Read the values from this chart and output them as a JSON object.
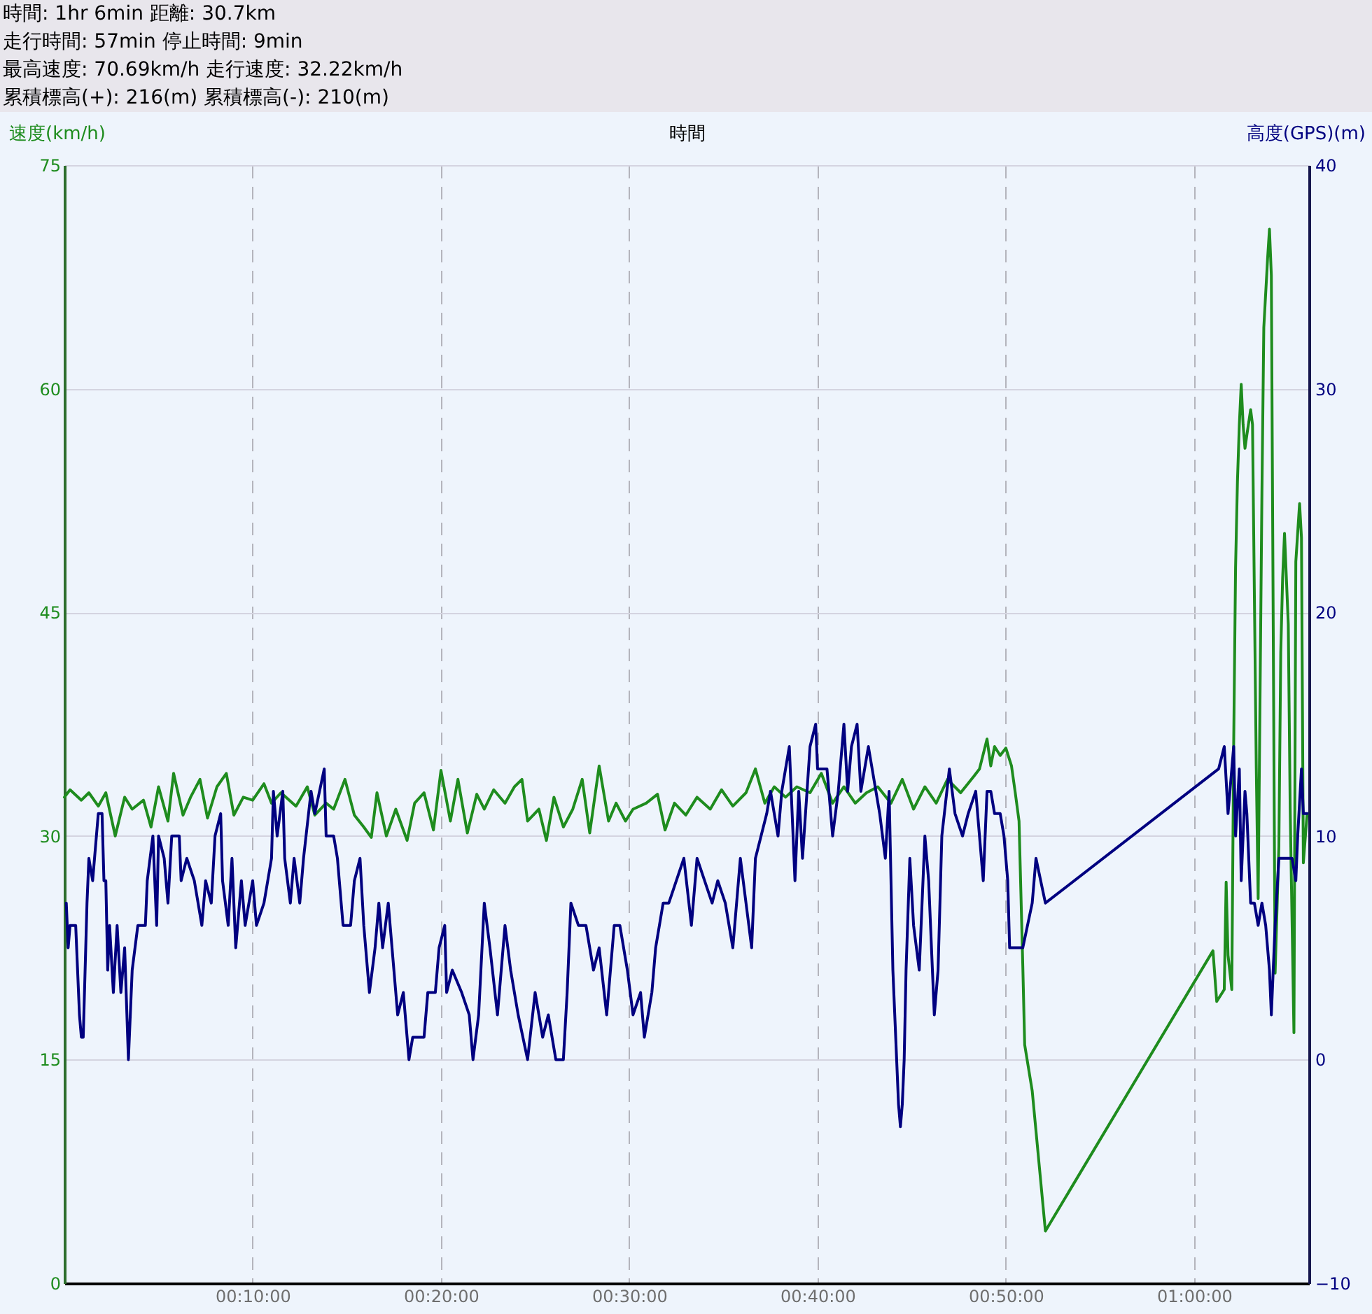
{
  "chart_data": {
    "type": "line",
    "annotations": [
      "時間: 1hr 6min 距離: 30.7km",
      "走行時間: 57min 停止時間: 9min",
      "最高速度: 70.69km/h 走行速度: 32.22km/h",
      "累積標高(+): 216(m) 累積標高(-): 210(m)"
    ],
    "xlabel": "時間",
    "ylabel": "速度(km/h)",
    "y2label": "高度(GPS)(m)",
    "xlim": [
      0,
      66.1
    ],
    "xticks": [
      {
        "value": 10,
        "label": "00:10:00"
      },
      {
        "value": 20,
        "label": "00:20:00"
      },
      {
        "value": 30,
        "label": "00:30:00"
      },
      {
        "value": 40,
        "label": "00:40:00"
      },
      {
        "value": 50,
        "label": "00:50:00"
      },
      {
        "value": 60,
        "label": "01:00:00"
      }
    ],
    "ylim": [
      0,
      75
    ],
    "yticks": [
      0,
      15,
      30,
      45,
      60,
      75
    ],
    "y2lim": [
      -10,
      40
    ],
    "y2ticks": [
      -10,
      0,
      10,
      20,
      30,
      40
    ],
    "grid": true,
    "series": [
      {
        "color": "#1e8c1e",
        "x": [
          0.0,
          0.3,
          0.9,
          1.3,
          1.8,
          2.2,
          2.7,
          3.2,
          3.6,
          4.2,
          4.6,
          5.0,
          5.5,
          5.8,
          6.3,
          6.7,
          7.2,
          7.6,
          8.1,
          8.6,
          9.0,
          9.5,
          10.0,
          10.6,
          11.0,
          11.5,
          12.3,
          12.9,
          13.3,
          13.9,
          14.3,
          14.9,
          15.4,
          15.9,
          16.3,
          16.6,
          17.1,
          17.6,
          18.2,
          18.6,
          19.1,
          19.6,
          20.0,
          20.5,
          20.9,
          21.4,
          21.9,
          22.3,
          22.8,
          23.4,
          23.9,
          24.3,
          24.6,
          25.2,
          25.6,
          26.0,
          26.5,
          27.0,
          27.5,
          27.9,
          28.4,
          28.9,
          29.3,
          29.8,
          30.2,
          30.9,
          31.5,
          31.9,
          32.4,
          33.0,
          33.6,
          34.3,
          34.9,
          35.5,
          36.2,
          36.7,
          37.2,
          37.7,
          38.3,
          38.9,
          39.6,
          40.2,
          40.8,
          41.4,
          42.0,
          42.6,
          43.2,
          43.9,
          44.5,
          45.1,
          45.7,
          46.3,
          46.9,
          47.6,
          48.3,
          48.6,
          49.0,
          49.2,
          49.4,
          49.7,
          50.0,
          50.3,
          50.5,
          50.7,
          50.9,
          51.0,
          51.4,
          52.1,
          61.0,
          61.2,
          61.6,
          61.7,
          61.8,
          62.0,
          62.1,
          62.2,
          62.3,
          62.4,
          62.5,
          62.6,
          62.7,
          62.8,
          63.0,
          63.1,
          63.3,
          63.4,
          63.6,
          63.7,
          63.9,
          64.0,
          64.1,
          64.3,
          64.5,
          64.6,
          64.7,
          64.8,
          65.0,
          65.1,
          65.3,
          65.4,
          65.6,
          65.7,
          65.8,
          66.0
        ],
        "values": [
          32.6,
          33.1,
          32.4,
          32.9,
          32.0,
          32.9,
          30.0,
          32.6,
          31.8,
          32.4,
          30.6,
          33.3,
          31.0,
          34.2,
          31.4,
          32.6,
          33.8,
          31.2,
          33.3,
          34.2,
          31.4,
          32.6,
          32.4,
          33.5,
          32.2,
          32.9,
          32.0,
          33.3,
          31.4,
          32.2,
          31.8,
          33.8,
          31.4,
          30.6,
          29.9,
          32.9,
          30.0,
          31.8,
          29.7,
          32.2,
          32.9,
          30.4,
          34.4,
          31.0,
          33.8,
          30.2,
          32.8,
          31.8,
          33.1,
          32.2,
          33.3,
          33.8,
          31.0,
          31.8,
          29.7,
          32.6,
          30.6,
          31.8,
          33.8,
          30.2,
          34.7,
          31.0,
          32.2,
          31.0,
          31.8,
          32.2,
          32.8,
          30.4,
          32.2,
          31.4,
          32.6,
          31.8,
          33.1,
          32.0,
          32.9,
          34.5,
          32.2,
          33.3,
          32.6,
          33.3,
          32.9,
          34.2,
          32.2,
          33.3,
          32.2,
          32.9,
          33.3,
          32.2,
          33.8,
          31.8,
          33.3,
          32.2,
          33.8,
          32.9,
          34.0,
          34.5,
          36.5,
          34.7,
          36.0,
          35.4,
          35.9,
          34.7,
          32.9,
          31.0,
          21.3,
          16.0,
          12.9,
          3.5,
          22.3,
          18.9,
          19.7,
          26.9,
          22.0,
          19.7,
          36.1,
          48.0,
          53.8,
          57.6,
          60.3,
          57.6,
          56.0,
          56.9,
          58.6,
          57.6,
          34.6,
          25.8,
          53.0,
          64.1,
          68.7,
          70.7,
          67.6,
          20.8,
          29.3,
          42.3,
          47.3,
          50.3,
          44.2,
          31.9,
          16.8,
          48.4,
          52.3,
          50.0,
          28.2,
          31.5
        ]
      },
      {
        "color": "#000080",
        "axis": "y2",
        "x": [
          0.1,
          0.2,
          0.3,
          0.6,
          0.8,
          0.9,
          1.0,
          1.2,
          1.3,
          1.5,
          1.8,
          2.0,
          2.1,
          2.2,
          2.3,
          2.4,
          2.6,
          2.8,
          3.0,
          3.2,
          3.4,
          3.6,
          3.9,
          4.3,
          4.4,
          4.7,
          4.9,
          5.0,
          5.3,
          5.5,
          5.7,
          6.1,
          6.2,
          6.5,
          6.9,
          7.3,
          7.5,
          7.8,
          8.0,
          8.3,
          8.4,
          8.7,
          8.9,
          9.1,
          9.4,
          9.6,
          10.0,
          10.2,
          10.6,
          11.0,
          11.1,
          11.3,
          11.6,
          11.7,
          12.0,
          12.2,
          12.5,
          12.7,
          13.1,
          13.3,
          13.8,
          13.9,
          14.3,
          14.5,
          14.8,
          15.2,
          15.4,
          15.7,
          15.9,
          16.2,
          16.5,
          16.7,
          16.9,
          17.2,
          17.5,
          17.7,
          18.0,
          18.3,
          18.5,
          19.1,
          19.3,
          19.7,
          19.9,
          20.2,
          20.3,
          20.6,
          21.1,
          21.5,
          21.7,
          22.0,
          22.3,
          22.6,
          23.0,
          23.4,
          23.7,
          24.1,
          24.6,
          25.0,
          25.4,
          25.7,
          26.1,
          26.5,
          26.7,
          26.9,
          27.3,
          27.7,
          28.1,
          28.4,
          28.8,
          29.2,
          29.5,
          29.9,
          30.2,
          30.6,
          30.8,
          31.2,
          31.4,
          31.8,
          32.1,
          32.5,
          32.9,
          33.3,
          33.6,
          34.0,
          34.4,
          34.7,
          35.1,
          35.5,
          35.8,
          35.9,
          36.2,
          36.5,
          36.7,
          37.0,
          37.3,
          37.5,
          37.9,
          38.1,
          38.5,
          38.8,
          39.0,
          39.2,
          39.6,
          39.9,
          40.0,
          40.5,
          40.8,
          41.1,
          41.4,
          41.6,
          41.8,
          42.1,
          42.3,
          42.7,
          43.1,
          43.3,
          43.6,
          43.8,
          44.0,
          44.2,
          44.3,
          44.4,
          44.5,
          44.6,
          44.7,
          44.9,
          45.1,
          45.4,
          45.7,
          45.9,
          46.2,
          46.4,
          46.6,
          47.0,
          47.3,
          47.7,
          48.0,
          48.4,
          48.8,
          49.0,
          49.2,
          49.4,
          49.7,
          49.9,
          50.1,
          50.2,
          50.9,
          51.4,
          51.6,
          52.1,
          61.3,
          61.6,
          61.8,
          62.1,
          62.2,
          62.4,
          62.5,
          62.7,
          62.8,
          63.0,
          63.2,
          63.4,
          63.6,
          63.8,
          64.0,
          64.1,
          64.3,
          64.5,
          64.8,
          65.2,
          65.4,
          65.5,
          65.7,
          65.8,
          66.0
        ],
        "values": [
          7,
          5,
          6,
          6,
          2,
          1,
          1,
          7,
          9,
          8,
          11,
          11,
          8,
          8,
          4,
          6,
          3,
          6,
          3,
          5,
          0,
          4,
          6,
          6,
          8,
          10,
          6,
          10,
          9,
          7,
          10,
          10,
          8,
          9,
          8,
          6,
          8,
          7,
          10,
          11,
          8,
          6,
          9,
          5,
          8,
          6,
          8,
          6,
          7,
          9,
          12,
          10,
          12,
          9,
          7,
          9,
          7,
          9,
          12,
          11,
          13,
          10,
          10,
          9,
          6,
          6,
          8,
          9,
          6,
          3,
          5,
          7,
          5,
          7,
          4,
          2,
          3,
          0,
          1,
          1,
          3,
          3,
          5,
          6,
          3,
          4,
          3,
          2,
          0,
          2,
          7,
          5,
          2,
          6,
          4,
          2,
          0,
          3,
          1,
          2,
          0,
          0,
          3,
          7,
          6,
          6,
          4,
          5,
          2,
          6,
          6,
          4,
          2,
          3,
          1,
          3,
          5,
          7,
          7,
          8,
          9,
          6,
          9,
          8,
          7,
          8,
          7,
          5,
          8,
          9,
          7,
          5,
          9,
          10,
          11,
          12,
          10,
          12,
          14,
          8,
          12,
          9,
          14,
          15,
          13,
          13,
          10,
          12,
          15,
          12,
          14,
          15,
          12,
          14,
          12,
          11,
          9,
          12,
          4,
          0,
          -2,
          -3,
          -2,
          0,
          4,
          9,
          6,
          4,
          10,
          8,
          2,
          4,
          10,
          13,
          11,
          10,
          11,
          12,
          8,
          12,
          12,
          11,
          11,
          10,
          8,
          5,
          5,
          7,
          9,
          7,
          13,
          14,
          11,
          14,
          10,
          13,
          8,
          12,
          11,
          7,
          7,
          6,
          7,
          6,
          4,
          2,
          6,
          9,
          9,
          9,
          8,
          10,
          13,
          11,
          11
        ]
      }
    ]
  }
}
